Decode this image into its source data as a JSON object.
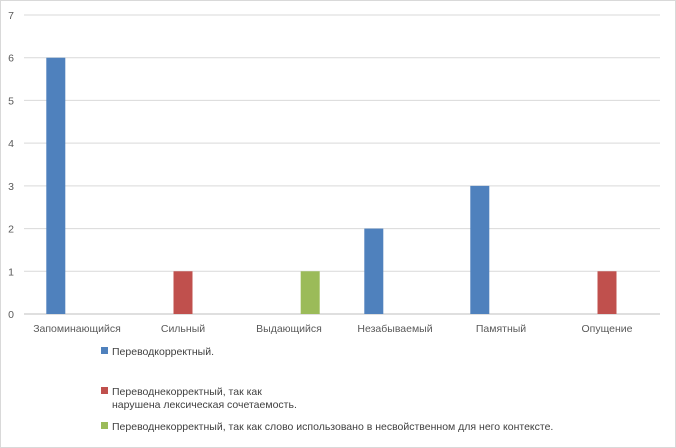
{
  "chart_data": {
    "type": "bar",
    "categories": [
      "Запоминающийся",
      "Сильный",
      "Выдающийся",
      "Незабываемый",
      "Памятный",
      "Опущение"
    ],
    "series": [
      {
        "name": "Переводкорректный.",
        "color": "#4f81bd",
        "values": [
          6,
          0,
          0,
          2,
          3,
          0
        ]
      },
      {
        "name": "Переводнекорректный, так как нарушена лексическая сочетаемость.",
        "color": "#c0504d",
        "values": [
          0,
          1,
          0,
          0,
          0,
          1
        ]
      },
      {
        "name": "Переводнекорректный, так как слово использовано в несвойственном для него контексте.",
        "color": "#9bbb59",
        "values": [
          0,
          0,
          1,
          0,
          0,
          0
        ]
      }
    ],
    "yticks": [
      0,
      1,
      2,
      3,
      4,
      5,
      6,
      7
    ],
    "ylim": [
      0,
      7
    ],
    "grid": true,
    "legend_position": "bottom",
    "legend_lines": [
      [
        "Переводкорректный."
      ],
      [
        "Переводнекорректный, так как",
        "нарушена лексическая сочетаемость."
      ],
      [
        "Переводнекорректный, так как слово использовано в несвойственном для него контексте."
      ]
    ]
  }
}
